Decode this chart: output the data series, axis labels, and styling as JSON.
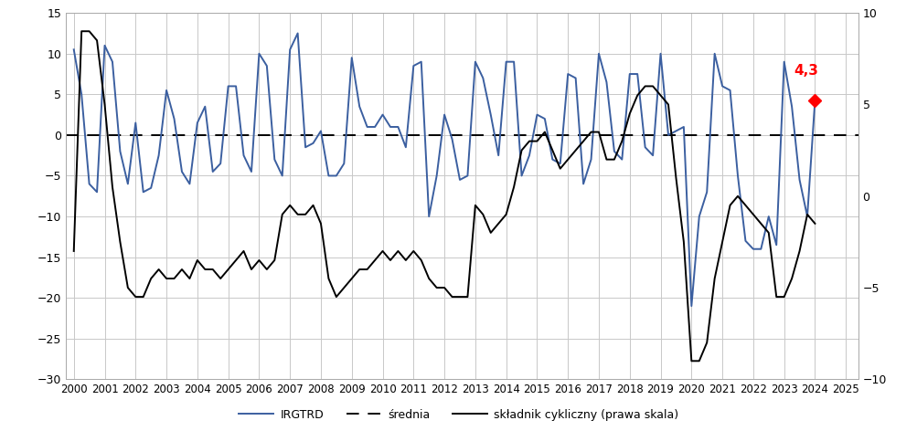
{
  "irgtrd": [
    10.5,
    5.0,
    -6.0,
    -7.0,
    11.0,
    9.0,
    -2.0,
    -6.0,
    1.5,
    -7.0,
    -6.5,
    -2.5,
    5.5,
    2.0,
    -4.5,
    -6.0,
    1.5,
    3.5,
    -4.5,
    -3.5,
    6.0,
    6.0,
    -2.5,
    -4.5,
    10.0,
    8.5,
    -3.0,
    -5.0,
    10.5,
    12.5,
    -1.5,
    -1.0,
    0.5,
    -5.0,
    -5.0,
    -3.5,
    9.5,
    3.5,
    1.0,
    1.0,
    2.5,
    1.0,
    1.0,
    -1.5,
    8.5,
    9.0,
    -10.0,
    -5.0,
    2.5,
    -0.5,
    -5.5,
    -5.0,
    9.0,
    7.0,
    2.5,
    -2.5,
    9.0,
    9.0,
    -5.0,
    -2.5,
    2.5,
    2.0,
    -3.0,
    -3.5,
    7.5,
    7.0,
    -6.0,
    -3.0,
    10.0,
    6.5,
    -2.0,
    -3.0,
    7.5,
    7.5,
    -1.5,
    -2.5,
    10.0,
    0.0,
    0.5,
    1.0,
    -21.0,
    -10.0,
    -7.0,
    10.0,
    6.0,
    5.5,
    -5.0,
    -13.0,
    -14.0,
    -14.0,
    -10.0,
    -13.5,
    9.0,
    3.5,
    -5.5,
    -10.0,
    4.3
  ],
  "cyclic": [
    -3.0,
    9.0,
    9.0,
    8.5,
    5.0,
    0.5,
    -2.5,
    -5.0,
    -5.5,
    -5.5,
    -4.5,
    -4.0,
    -4.5,
    -4.5,
    -4.0,
    -4.5,
    -3.5,
    -4.0,
    -4.0,
    -4.5,
    -4.0,
    -3.5,
    -3.0,
    -4.0,
    -3.5,
    -4.0,
    -3.5,
    -1.0,
    -0.5,
    -1.0,
    -1.0,
    -0.5,
    -1.5,
    -4.5,
    -5.5,
    -5.0,
    -4.5,
    -4.0,
    -4.0,
    -3.5,
    -3.0,
    -3.5,
    -3.0,
    -3.5,
    -3.0,
    -3.5,
    -4.5,
    -5.0,
    -5.0,
    -5.5,
    -5.5,
    -5.5,
    -0.5,
    -1.0,
    -2.0,
    -1.5,
    -1.0,
    0.5,
    2.5,
    3.0,
    3.0,
    3.5,
    2.5,
    1.5,
    2.0,
    2.5,
    3.0,
    3.5,
    3.5,
    2.0,
    2.0,
    3.0,
    4.5,
    5.5,
    6.0,
    6.0,
    5.5,
    5.0,
    1.0,
    -2.5,
    -9.0,
    -9.0,
    -8.0,
    -4.5,
    -2.5,
    -0.5,
    0.0,
    -0.5,
    -1.0,
    -1.5,
    -2.0,
    -5.5,
    -5.5,
    -4.5,
    -3.0,
    -1.0,
    -1.5
  ],
  "start_year": 2000,
  "left_ylim": [
    -30,
    15
  ],
  "right_ylim": [
    -10,
    10
  ],
  "left_yticks": [
    -30,
    -25,
    -20,
    -15,
    -10,
    -5,
    0,
    5,
    10,
    15
  ],
  "right_yticks": [
    -10,
    -5,
    0,
    5,
    10
  ],
  "xlabel_ticks": [
    2000,
    2001,
    2002,
    2003,
    2004,
    2005,
    2006,
    2007,
    2008,
    2009,
    2010,
    2011,
    2012,
    2013,
    2014,
    2015,
    2016,
    2017,
    2018,
    2019,
    2020,
    2021,
    2022,
    2023,
    2024,
    2025
  ],
  "xlim": [
    1999.75,
    2025.4
  ],
  "irgtrd_color": "#3b5fa0",
  "cyclic_color": "#000000",
  "mean_color": "#000000",
  "annotation_text": "4,3",
  "annotation_color": "#ff0000",
  "legend_labels": [
    "IRGTRD",
    "średnia",
    "składnik cykliczny (prawa skala)"
  ],
  "background_color": "#ffffff",
  "grid_color": "#c8c8c8"
}
